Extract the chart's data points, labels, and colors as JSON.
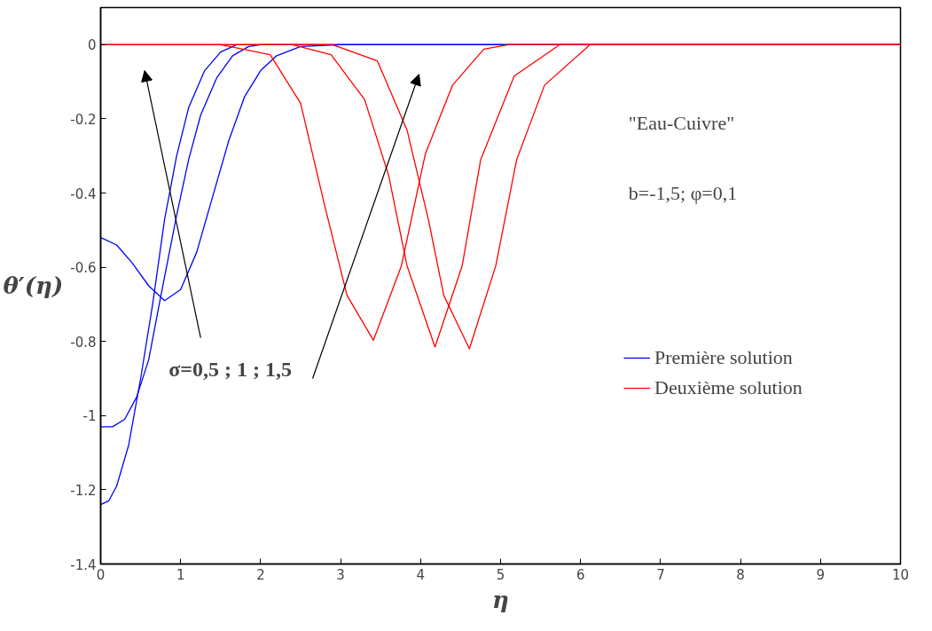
{
  "chart_data": {
    "type": "line",
    "xlabel": "η",
    "ylabel": "θ′(η)",
    "xlim": [
      0,
      10
    ],
    "ylim": [
      -1.4,
      0.1
    ],
    "xticks": [
      0,
      1,
      2,
      3,
      4,
      5,
      6,
      7,
      8,
      9,
      10
    ],
    "yticks": [
      {
        "value": -1.4,
        "label": "-1.4"
      },
      {
        "value": -1.2,
        "label": "-1.2"
      },
      {
        "value": -1,
        "label": "-1"
      },
      {
        "value": -0.8,
        "label": "-0.8"
      },
      {
        "value": -0.6,
        "label": "-0.6"
      },
      {
        "value": -0.4,
        "label": "-0.4"
      },
      {
        "value": -0.2,
        "label": "-0.2"
      },
      0
    ],
    "grid": false,
    "legend": "right",
    "line_style": "solid",
    "marker": "none",
    "annotations": [
      "\"Eau-Cuivre\"",
      "b=-1,5; φ=0,1",
      "σ=0,5 ; 1 ; 1,5"
    ],
    "series": [
      {
        "name": "Première solution",
        "color": "#0000ff",
        "x": [
          0,
          0.2,
          0.4,
          0.6,
          0.8,
          1.0,
          1.2,
          1.4,
          1.6,
          1.8,
          2.0,
          2.2,
          2.5,
          3,
          10
        ],
        "values": [
          -0.52,
          -0.54,
          -0.59,
          -0.65,
          -0.69,
          -0.66,
          -0.56,
          -0.41,
          -0.26,
          -0.14,
          -0.07,
          -0.03,
          -0.005,
          0,
          0
        ]
      },
      {
        "color": "#0000ff",
        "x": [
          0,
          0.15,
          0.3,
          0.45,
          0.6,
          0.75,
          0.95,
          1.1,
          1.25,
          1.45,
          1.65,
          1.85,
          2.0,
          10
        ],
        "values": [
          -1.03,
          -1.03,
          -1.01,
          -0.95,
          -0.85,
          -0.68,
          -0.46,
          -0.31,
          -0.19,
          -0.09,
          -0.03,
          -0.005,
          0,
          0
        ]
      },
      {
        "color": "#0000ff",
        "x": [
          0,
          0.1,
          0.2,
          0.35,
          0.5,
          0.65,
          0.8,
          0.95,
          1.1,
          1.3,
          1.5,
          1.7,
          10
        ],
        "values": [
          -1.24,
          -1.23,
          -1.19,
          -1.08,
          -0.9,
          -0.7,
          -0.47,
          -0.3,
          -0.17,
          -0.07,
          -0.02,
          0,
          0
        ]
      },
      {
        "name": "Deuxième solution",
        "color": "#ff0000",
        "x": [
          0,
          1.5,
          2.12,
          2.5,
          2.8,
          3.08,
          3.41,
          3.76,
          4.06,
          4.4,
          4.79,
          5.1,
          10
        ],
        "values": [
          0,
          0,
          -0.027,
          -0.158,
          -0.433,
          -0.676,
          -0.797,
          -0.596,
          -0.294,
          -0.109,
          -0.012,
          0,
          0
        ]
      },
      {
        "color": "#ff0000",
        "x": [
          0,
          2.4,
          2.88,
          3.3,
          3.6,
          3.83,
          4.18,
          4.52,
          4.75,
          5.17,
          5.74,
          10
        ],
        "values": [
          0,
          0,
          -0.027,
          -0.148,
          -0.352,
          -0.596,
          -0.815,
          -0.596,
          -0.311,
          -0.085,
          0,
          0
        ]
      },
      {
        "color": "#ff0000",
        "x": [
          0,
          2.9,
          3.46,
          3.83,
          4.1,
          4.29,
          4.61,
          4.94,
          5.2,
          5.55,
          6.12,
          10
        ],
        "values": [
          0,
          0,
          -0.044,
          -0.23,
          -0.474,
          -0.676,
          -0.82,
          -0.596,
          -0.311,
          -0.109,
          0,
          0
        ]
      }
    ]
  }
}
